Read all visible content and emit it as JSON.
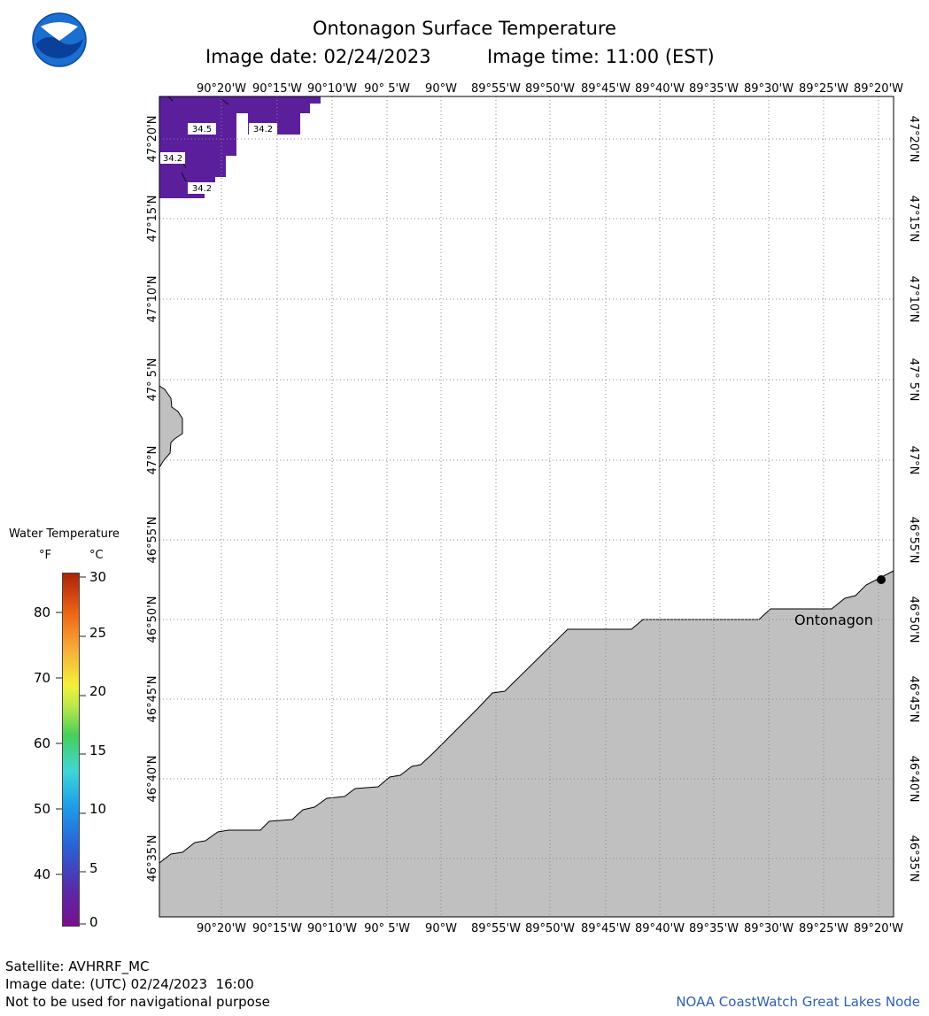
{
  "header": {
    "title": "Ontonagon Surface Temperature",
    "image_date": "Image date: 02/24/2023",
    "image_time": "Image time: 11:00 (EST)"
  },
  "map": {
    "lon_labels": [
      "90°20'W",
      "90°15'W",
      "90°10'W",
      "90° 5'W",
      "90°W",
      "89°55'W",
      "89°50'W",
      "89°45'W",
      "89°40'W",
      "89°35'W",
      "89°30'W",
      "89°25'W",
      "89°20'W"
    ],
    "lat_labels": [
      "47°20'N",
      "47°15'N",
      "47°10'N",
      "47° 5'N",
      "47°N",
      "46°55'N",
      "46°50'N",
      "46°45'N",
      "46°40'N",
      "46°35'N"
    ],
    "place_label": "Ontonagon",
    "contour_labels": [
      "34.5",
      "34.2",
      "34.2",
      "34.2"
    ],
    "colors": {
      "land": "#c0c0c0",
      "cold_water": "#5b1f9c",
      "grid": "#888888"
    }
  },
  "legend": {
    "title": "Water Temperature",
    "unit_f": "°F",
    "unit_c": "°C",
    "f_ticks": [
      "80",
      "70",
      "60",
      "50",
      "40"
    ],
    "c_ticks": [
      "30",
      "25",
      "20",
      "15",
      "10",
      "5",
      "0"
    ]
  },
  "footer": {
    "satellite": "Satellite: AVHRRF_MC",
    "utc_date": "Image date: (UTC) 02/24/2023  16:00",
    "disclaimer": "Not to be used for navigational purpose",
    "credit": "NOAA CoastWatch Great Lakes Node"
  }
}
